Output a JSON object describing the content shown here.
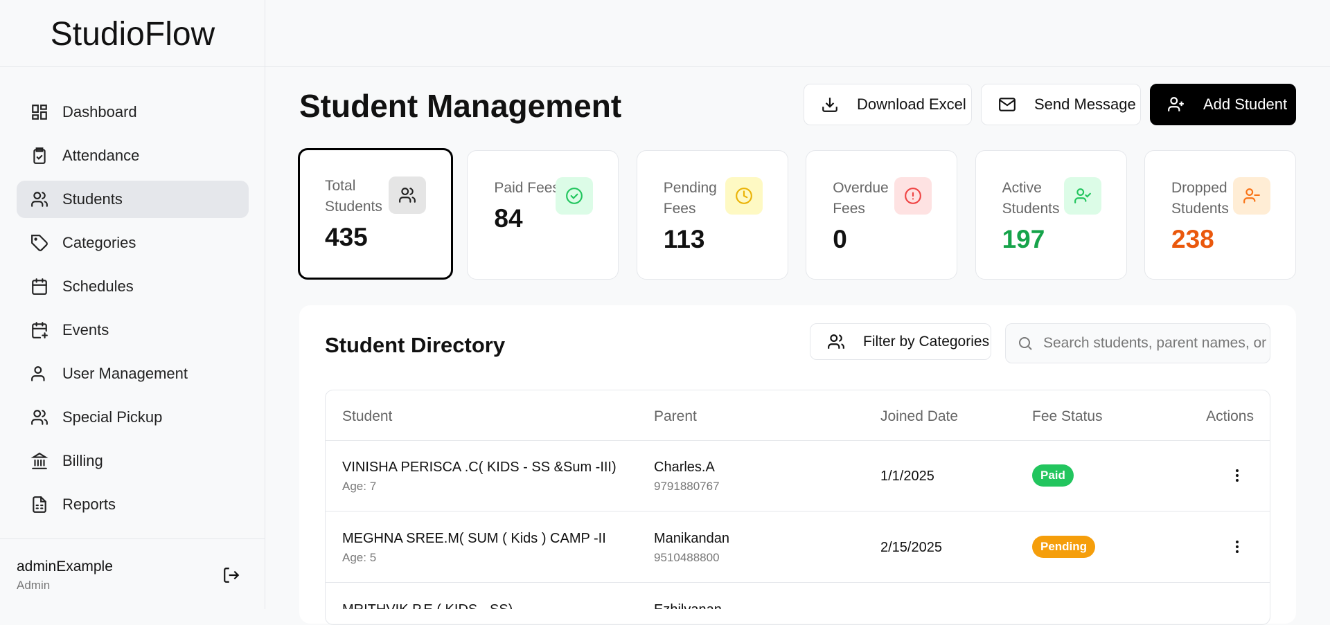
{
  "sidebar": {
    "logo": "StudioFlow",
    "nav": [
      "Dashboard",
      "Attendance",
      "Students",
      "Categories",
      "Schedules",
      "Events",
      "User Management",
      "Special Pickup",
      "Billing",
      "Reports"
    ],
    "user": {
      "name": "adminExample",
      "role": "Admin"
    }
  },
  "header": {
    "title": "Student Management",
    "buttons": [
      "Download Excel",
      "Send Message",
      "Add Student"
    ]
  },
  "stats": [
    {
      "label": "Total Students",
      "value": "435"
    },
    {
      "label": "Paid Fees",
      "value": "84"
    },
    {
      "label": "Pending Fees",
      "value": "113"
    },
    {
      "label": "Overdue Fees",
      "value": "0"
    },
    {
      "label": "Active Students",
      "value": "197"
    },
    {
      "label": "Dropped Students",
      "value": "238"
    }
  ],
  "directory": {
    "title": "Student Directory",
    "filter": "Filter by Categories",
    "search_placeholder": "Search students, parent names, or",
    "table": {
      "columns": [
        "Student",
        "Parent",
        "Joined Date",
        "Fee Status",
        "Actions"
      ],
      "rows": [
        {
          "student": "VINISHA PERISCA .C( KIDS - SS &Sum -III)",
          "age": "Age: 7",
          "parent": "Charles.A",
          "phone": "9791880767",
          "joined": "1/1/2025",
          "status": "Paid"
        },
        {
          "student": "MEGHNA SREE.M( SUM ( Kids ) CAMP -II",
          "age": "Age: 5",
          "parent": "Manikandan",
          "phone": "9510488800",
          "joined": "2/15/2025",
          "status": "Pending"
        },
        {
          "student": "MRITHVIK P.E ( KIDS - SS)",
          "parent": "Ezhilvanan"
        }
      ]
    }
  }
}
